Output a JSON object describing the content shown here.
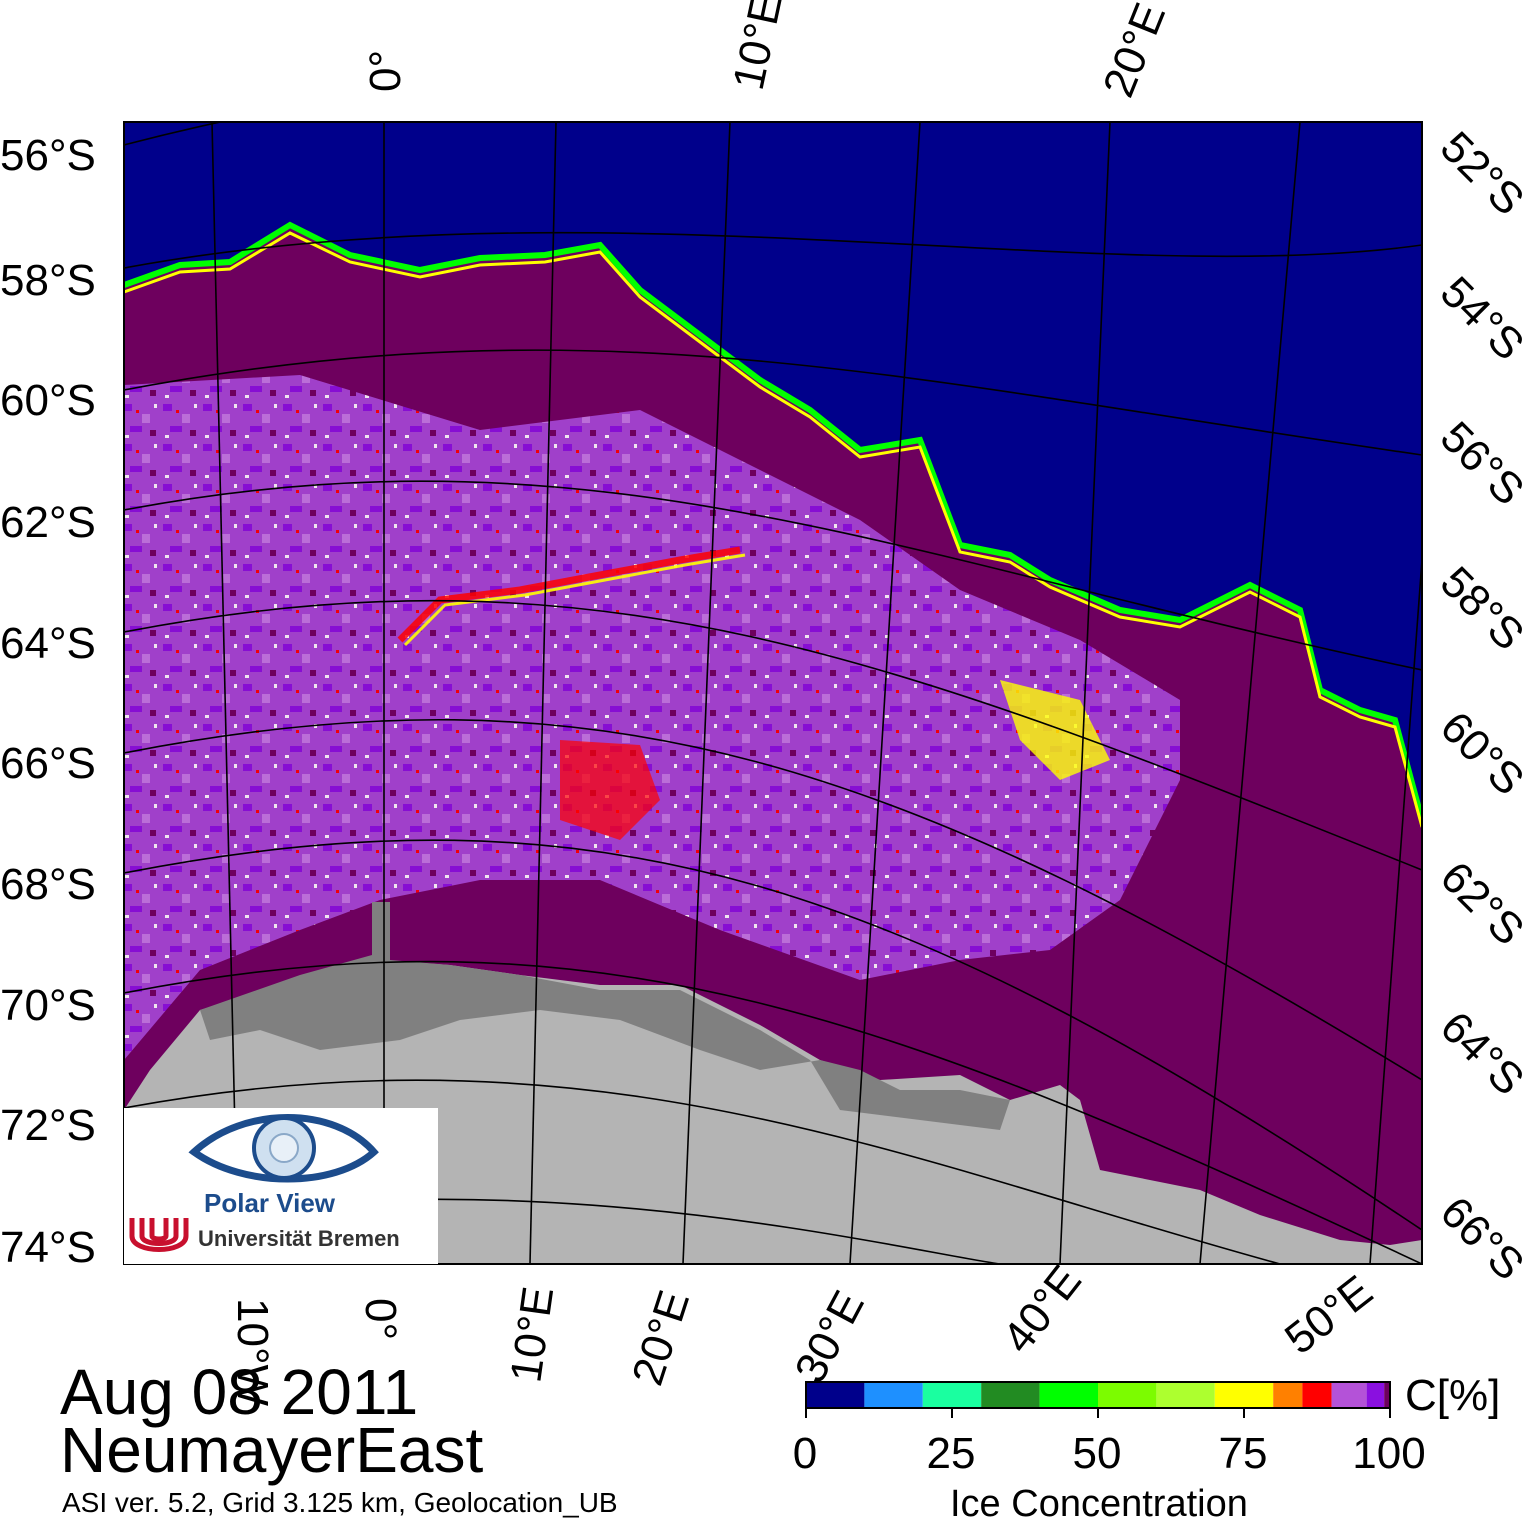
{
  "title_date": "Aug 08 2011",
  "region": "NeumayerEast",
  "meta": "ASI ver. 5.2,  Grid 3.125 km, Geolocation_UB",
  "logo": {
    "name": "Polar View",
    "institution": "Universität Bremen"
  },
  "left_lat_labels": [
    "56°S",
    "58°S",
    "60°S",
    "62°S",
    "64°S",
    "66°S",
    "68°S",
    "70°S",
    "72°S",
    "74°S"
  ],
  "right_lat_labels": [
    "52°S",
    "54°S",
    "56°S",
    "58°S",
    "60°S",
    "62°S",
    "64°S",
    "66°S"
  ],
  "top_lon_labels": [
    "0°",
    "10°E",
    "20°E"
  ],
  "bottom_lon_labels": [
    "10°W",
    "0°",
    "10°E",
    "20°E",
    "30°E",
    "40°E",
    "50°E"
  ],
  "colorbar": {
    "unit": "C[%]",
    "title": "Ice Concentration",
    "ticks": [
      "0",
      "25",
      "50",
      "75",
      "100"
    ],
    "range": [
      0,
      100
    ],
    "colors": [
      "#00008b",
      "#1e90ff",
      "#1affa0",
      "#228b22",
      "#00ff00",
      "#7cfc00",
      "#adff2f",
      "#ffff00",
      "#ff8000",
      "#ff0000",
      "#b452d8",
      "#8a10e0",
      "#6e005e"
    ]
  },
  "colors": {
    "open_water": "#00008b",
    "high_ice": "#6e005e",
    "land": "#b4b4b4",
    "ice_shelf": "#808080"
  }
}
